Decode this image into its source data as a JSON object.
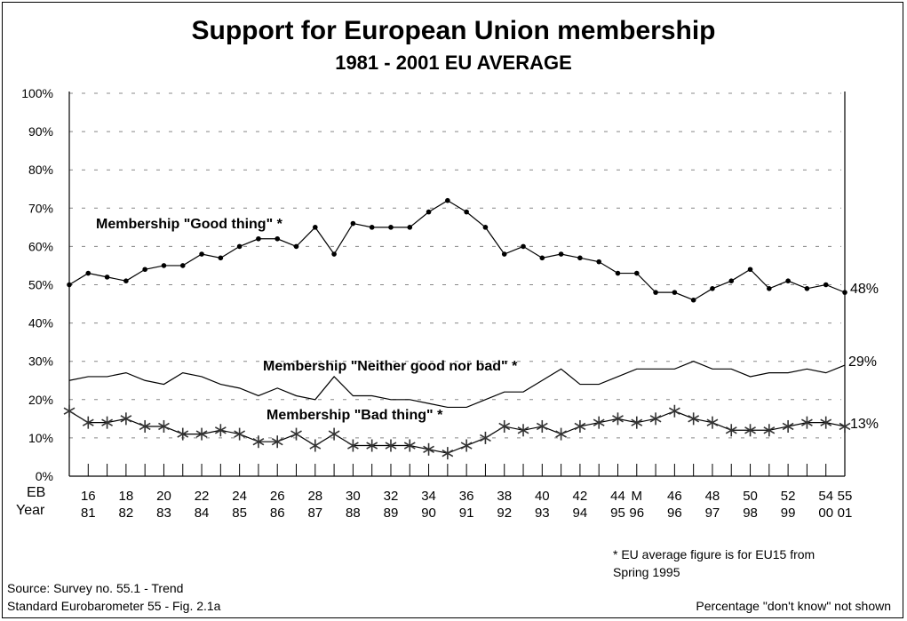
{
  "chart_data": {
    "type": "line",
    "title": "Support for European Union membership",
    "subtitle": "1981 - 2001 EU AVERAGE",
    "ylim": [
      0,
      100
    ],
    "y_ticks": [
      "0%",
      "10%",
      "20%",
      "30%",
      "40%",
      "50%",
      "60%",
      "70%",
      "80%",
      "90%",
      "100%"
    ],
    "grid": "horizontal dashed",
    "x_row_labels": [
      "EB",
      "Year"
    ],
    "eb_labels": [
      "",
      "16",
      "",
      "18",
      "",
      "20",
      "",
      "22",
      "",
      "24",
      "",
      "26",
      "",
      "28",
      "",
      "30",
      "",
      "32",
      "",
      "34",
      "",
      "36",
      "",
      "38",
      "",
      "40",
      "",
      "42",
      "",
      "44",
      "M",
      "",
      "46",
      "",
      "48",
      "",
      "50",
      "",
      "52",
      "",
      "54",
      "55"
    ],
    "year_labels": [
      "",
      "81",
      "",
      "82",
      "",
      "83",
      "",
      "84",
      "",
      "85",
      "",
      "86",
      "",
      "87",
      "",
      "88",
      "",
      "89",
      "",
      "90",
      "",
      "91",
      "",
      "92",
      "",
      "93",
      "",
      "94",
      "",
      "95",
      "96",
      "",
      "96",
      "",
      "97",
      "",
      "98",
      "",
      "99",
      "",
      "00",
      "01"
    ],
    "series": [
      {
        "name": "Membership \"Good thing\" *",
        "marker": "dot",
        "end_label": "48%",
        "values": [
          50,
          53,
          52,
          51,
          54,
          55,
          55,
          58,
          57,
          60,
          62,
          62,
          60,
          65,
          58,
          66,
          65,
          65,
          65,
          69,
          72,
          69,
          65,
          58,
          60,
          57,
          58,
          57,
          56,
          53,
          53,
          48,
          48,
          46,
          49,
          51,
          54,
          49,
          51,
          49,
          50,
          48
        ]
      },
      {
        "name": "Membership \"Neither good nor bad\" *",
        "marker": "none",
        "end_label": "29%",
        "values": [
          25,
          26,
          26,
          27,
          25,
          24,
          27,
          26,
          24,
          23,
          21,
          23,
          21,
          20,
          26,
          21,
          21,
          20,
          20,
          19,
          18,
          18,
          20,
          22,
          22,
          25,
          28,
          24,
          24,
          26,
          28,
          28,
          28,
          30,
          28,
          28,
          26,
          27,
          27,
          28,
          27,
          29
        ]
      },
      {
        "name": "Membership \"Bad thing\" *",
        "marker": "star",
        "end_label": "13%",
        "values": [
          17,
          14,
          14,
          15,
          13,
          13,
          11,
          11,
          12,
          11,
          9,
          9,
          11,
          8,
          11,
          8,
          8,
          8,
          8,
          7,
          6,
          8,
          10,
          13,
          12,
          13,
          11,
          13,
          14,
          15,
          14,
          15,
          17,
          15,
          14,
          12,
          12,
          12,
          13,
          14,
          14,
          13
        ]
      }
    ]
  },
  "notes": {
    "footnote_line1": "* EU average figure is for EU15 from",
    "footnote_line2": "Spring 1995",
    "source_line1": "Source:  Survey no. 55.1 - Trend",
    "source_line2": "Standard Eurobarometer 55 - Fig. 2.1a",
    "dont_know": "Percentage \"don't know\" not shown"
  }
}
